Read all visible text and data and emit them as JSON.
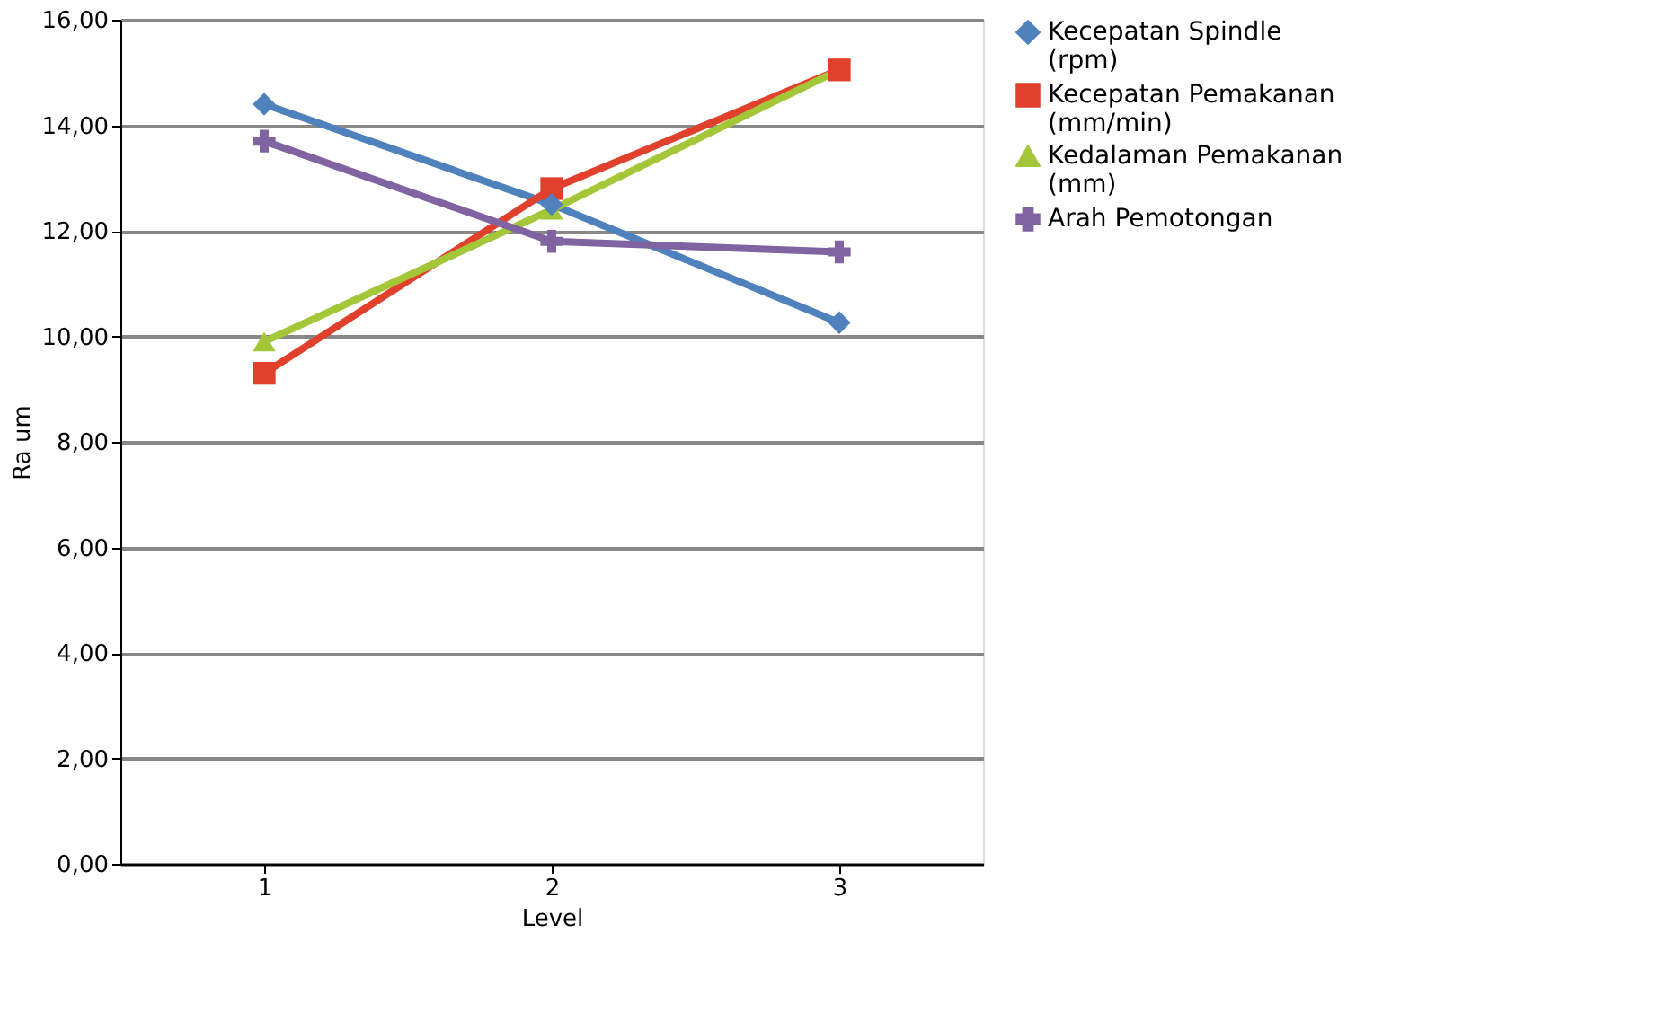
{
  "chart_data": {
    "type": "line",
    "xlabel": "Level",
    "ylabel": "Ra um",
    "categories": [
      "1",
      "2",
      "3"
    ],
    "series": [
      {
        "name": "Kecepatan Spindle (rpm)",
        "color": "#4f81bd",
        "marker": "diamond",
        "values": [
          14.4,
          12.5,
          10.26
        ]
      },
      {
        "name": "Kecepatan Pemakanan (mm/min)",
        "color": "#e0402c",
        "marker": "square",
        "values": [
          9.3,
          12.8,
          15.05
        ]
      },
      {
        "name": "Kedalaman Pemakanan (mm)",
        "color": "#a4c639",
        "marker": "triangle",
        "values": [
          9.9,
          12.4,
          15.05
        ]
      },
      {
        "name": "Arah Pemotongan",
        "color": "#8064a2",
        "marker": "cross",
        "values": [
          13.7,
          11.8,
          11.6
        ]
      }
    ],
    "ylim": [
      0,
      16
    ],
    "yticks": [
      {
        "value": 0,
        "label": "0,00"
      },
      {
        "value": 2,
        "label": "2,00"
      },
      {
        "value": 4,
        "label": "4,00"
      },
      {
        "value": 6,
        "label": "6,00"
      },
      {
        "value": 8,
        "label": "8,00"
      },
      {
        "value": 10,
        "label": "10,00"
      },
      {
        "value": 12,
        "label": "12,00"
      },
      {
        "value": 14,
        "label": "14,00"
      },
      {
        "value": 16,
        "label": "16,00"
      }
    ],
    "grid": "y",
    "legend": "right",
    "line_style": "solid"
  }
}
